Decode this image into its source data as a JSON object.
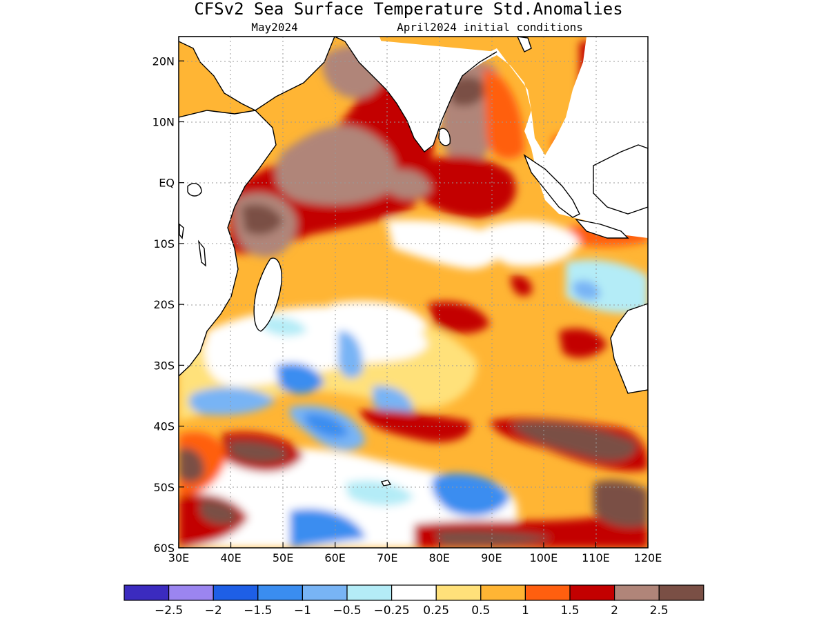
{
  "title": "CFSv2 Sea Surface Temperature Std.Anomalies",
  "subtitle_left": "May2024",
  "subtitle_right": "April2024 initial conditions",
  "map": {
    "lon_range": [
      30,
      120
    ],
    "lat_range": [
      -60,
      24
    ],
    "lon_ticks": [
      "30E",
      "40E",
      "50E",
      "60E",
      "70E",
      "80E",
      "90E",
      "100E",
      "110E",
      "120E"
    ],
    "lat_ticks": [
      "20N",
      "10N",
      "EQ",
      "10S",
      "20S",
      "30S",
      "40S",
      "50S",
      "60S"
    ],
    "grid": true
  },
  "colorbar": {
    "colors": [
      "#3b2bbf",
      "#9b85f0",
      "#1e5fe6",
      "#3a8df0",
      "#78b4f5",
      "#b4ecf7",
      "#ffffff",
      "#ffe17a",
      "#ffb534",
      "#ff5f0f",
      "#c30000",
      "#b08579",
      "#7a4f45"
    ],
    "labels": [
      "−2.5",
      "−2",
      "−1.5",
      "−1",
      "−0.5",
      "−0.25",
      "0.25",
      "0.5",
      "1",
      "1.5",
      "2",
      "2.5"
    ]
  },
  "land_color": "#ffffff"
}
